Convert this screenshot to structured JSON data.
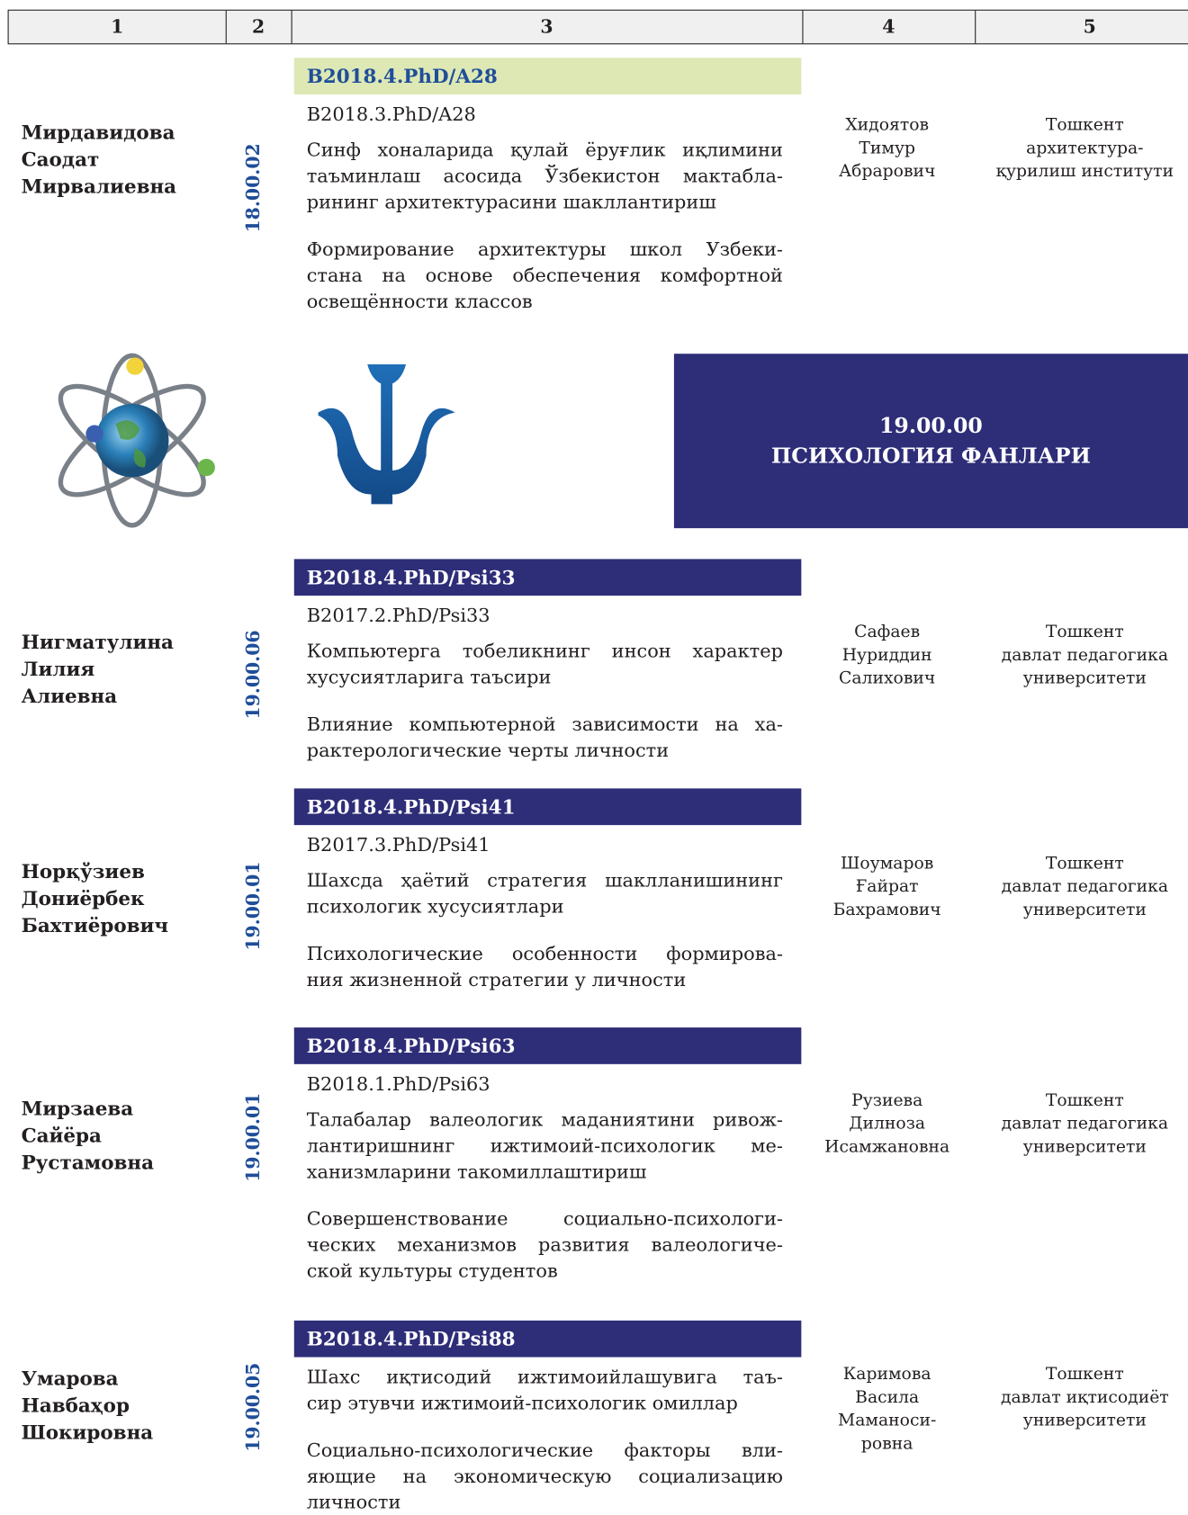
{
  "header": {
    "columns": [
      "1",
      "2",
      "3",
      "4",
      "5"
    ]
  },
  "entries": [
    {
      "name": [
        "Мирдавидова",
        "Саодат",
        "Мирвалиевна"
      ],
      "code": "18.00.02",
      "registration": "B2018.4.PhD/A28",
      "previous_registration": "B2018.3.PhD/A28",
      "title_uz": [
        "Синф хоналарида қулай ёруғлик иқлимини",
        "таъминлаш асосида Ўзбекистон мактабла-",
        "рининг архитектурасини шакллантириш"
      ],
      "title_ru": [
        "Формирование архитектуры школ Узбеки-",
        "стана на основе обеспечения комфортной",
        "освещённости классов"
      ],
      "supervisor": [
        "Хидоятов",
        "Тимур",
        "Абрарович"
      ],
      "institution": [
        "Тошкент",
        "архитектура-",
        "қурилиш институти"
      ]
    },
    {
      "name": [
        "Нигматулина",
        "Лилия",
        "Алиевна"
      ],
      "code": "19.00.06",
      "registration": "B2018.4.PhD/Psi33",
      "previous_registration": "B2017.2.PhD/Psi33",
      "title_uz": [
        "Компьютерга тобеликнинг инсон характер",
        "хусусиятларига таъсири"
      ],
      "title_ru": [
        "Влияние компьютерной зависимости на ха-",
        "рактерологические черты личности"
      ],
      "supervisor": [
        "Сафаев",
        "Нуриддин",
        "Салихович"
      ],
      "institution": [
        "Тошкент",
        "давлат педагогика",
        "университети"
      ]
    },
    {
      "name": [
        "Норқўзиев",
        "Дониёрбек",
        "Бахтиёрович"
      ],
      "code": "19.00.01",
      "registration": "B2018.4.PhD/Psi41",
      "previous_registration": "B2017.3.PhD/Psi41",
      "title_uz": [
        "Шахсда ҳаётий стратегия шаклланишининг",
        "психологик хусусиятлари"
      ],
      "title_ru": [
        "Психологические особенности формирова-",
        "ния жизненной стратегии у личности"
      ],
      "supervisor": [
        "Шоумаров",
        "Ғайрат",
        "Бахрамович"
      ],
      "institution": [
        "Тошкент",
        "давлат педагогика",
        "университети"
      ]
    },
    {
      "name": [
        "Мирзаева",
        "Сайёра",
        "Рустамовна"
      ],
      "code": "19.00.01",
      "registration": "B2018.4.PhD/Psi63",
      "previous_registration": "B2018.1.PhD/Psi63",
      "title_uz": [
        "Талабалар валеологик маданиятини ривож-",
        "лантиришнинг ижтимоий-психологик ме-",
        "ханизмларини такомиллаштириш"
      ],
      "title_ru": [
        "Совершенствование социально-психологи-",
        "ческих механизмов развития валеологиче-",
        "ской культуры студентов"
      ],
      "supervisor": [
        "Рузиева",
        "Дилноза",
        "Исамжановна"
      ],
      "institution": [
        "Тошкент",
        "давлат педагогика",
        "университети"
      ]
    },
    {
      "name": [
        "Умарова",
        "Навбаҳор",
        "Шокировна"
      ],
      "code": "19.00.05",
      "registration": "B2018.4.PhD/Psi88",
      "title_uz": [
        "Шахс иқтисодий ижтимоийлашувига таъ-",
        "сир этувчи ижтимоий-психологик омиллар"
      ],
      "title_ru": [
        "Социально-психологические факторы вли-",
        "яющие на экономическую социализацию",
        "личности"
      ],
      "supervisor": [
        "Каримова",
        "Васила",
        "Маманоси-",
        "ровна"
      ],
      "institution": [
        "Тошкент",
        "давлат иқтисодиёт",
        "университети"
      ]
    }
  ],
  "section": {
    "code": "19.00.00",
    "title": "ПСИХОЛОГИЯ ФАНЛАРИ"
  }
}
